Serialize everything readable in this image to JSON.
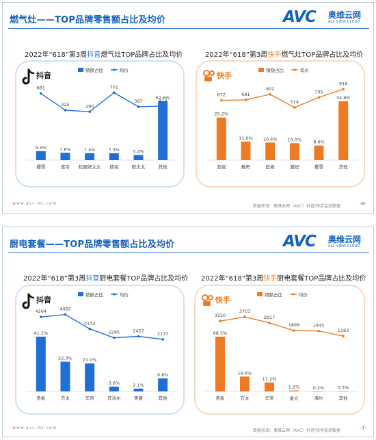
{
  "slides": [
    {
      "title": "燃气灶——TOP品牌零售额占比及均价",
      "logo_cn": "奥维云网",
      "logo_en": "ALL VIEW CLOUD",
      "logo_avc": "AVC",
      "footer_left": "www.avc-mr.com",
      "footer_source": "数据来源：奥维云网（AVC）抖音/快手监测数据",
      "page": "-6-",
      "panels": [
        {
          "title_pre": "2022年“618”第3周",
          "title_hl": "抖音",
          "title_post": "燃气灶TOP品牌占比及均价",
          "platform": "抖音"
        },
        {
          "title_pre": "2022年“618”第3周",
          "title_hl": "快手",
          "title_post": "燃气灶TOP品牌占比及均价",
          "platform": "快手"
        }
      ]
    },
    {
      "title": "厨电套餐——TOP品牌零售额占比及均价",
      "logo_cn": "奥维云网",
      "logo_en": "ALL VIEW CLOUD",
      "logo_avc": "AVC",
      "footer_left": "www.avc-mr.com",
      "footer_source": "数据来源：奥维云网（AVC）抖音/快手监测数据",
      "page": "-7-",
      "panels": [
        {
          "title_pre": "2022年“618”第3周",
          "title_hl": "抖音",
          "title_post": "厨电套餐TOP品牌占比及均价",
          "platform": "抖音"
        },
        {
          "title_pre": "2022年“618”第3周",
          "title_hl": "快手",
          "title_post": "厨电套餐TOP品牌占比及均价",
          "platform": "快手"
        }
      ]
    }
  ],
  "legend": {
    "share": "销额占比",
    "price": "均价"
  },
  "colors": {
    "blue": "#1f6fd6",
    "orange": "#ee7a23",
    "title_blue": "#1560bd"
  },
  "chart_data": [
    {
      "type": "bar",
      "categories": [
        "樱雪",
        "富帝",
        "松厨好太太",
        "德铭",
        "欧太太",
        "其他"
      ],
      "series": [
        {
          "name": "销额占比",
          "values": [
            9.5,
            7.8,
            7.4,
            7.3,
            5.4,
            62.6
          ],
          "labels": [
            "9.5%",
            "7.8%",
            "7.4%",
            "7.3%",
            "5.4%",
            "62.6%"
          ]
        },
        {
          "name": "均价",
          "values": [
            681,
            325,
            290,
            701,
            397,
            413
          ],
          "labels": [
            "681",
            "325",
            "290",
            "701",
            "397",
            "413"
          ]
        }
      ],
      "color": "#1f6fd6"
    },
    {
      "type": "bar",
      "categories": [
        "亚锐",
        "靓奇",
        "匠者",
        "厨妃",
        "樱雪",
        "其他"
      ],
      "series": [
        {
          "name": "销额占比",
          "values": [
            25.2,
            11.0,
            10.4,
            10.0,
            8.6,
            34.8
          ],
          "labels": [
            "25.2%",
            "11.0%",
            "10.4%",
            "10.0%",
            "8.6%",
            "34.8%"
          ]
        },
        {
          "name": "均价",
          "values": [
            672,
            681,
            802,
            514,
            735,
            916
          ],
          "labels": [
            "672",
            "681",
            "802",
            "514",
            "735",
            "916"
          ]
        }
      ],
      "color": "#ee7a23"
    },
    {
      "type": "bar",
      "categories": [
        "老板",
        "方太",
        "华帝",
        "苏泊尔",
        "美菱",
        "其他"
      ],
      "series": [
        {
          "name": "销额占比",
          "values": [
            41.1,
            22.3,
            21.0,
            3.6,
            2.1,
            9.8
          ],
          "labels": [
            "41.1%",
            "22.3%",
            "21.0%",
            "3.6%",
            "2.1%",
            "9.8%"
          ]
        },
        {
          "name": "均价",
          "values": [
            4264,
            4492,
            3132,
            2285,
            2422,
            2137
          ],
          "labels": [
            "4264",
            "4492",
            "3132",
            "2285",
            "2422",
            "2137"
          ]
        }
      ],
      "color": "#1f6fd6"
    },
    {
      "type": "bar",
      "categories": [
        "老板",
        "方太",
        "华帝",
        "金立",
        "海尔",
        "其他"
      ],
      "series": [
        {
          "name": "销额占比",
          "values": [
            68.5,
            18.6,
            11.2,
            1.2,
            0.2,
            0.3
          ],
          "labels": [
            "68.5%",
            "18.6%",
            "11.2%",
            "1.2%",
            "0.2%",
            "0.3%"
          ]
        },
        {
          "name": "均价",
          "values": [
            3150,
            3703,
            2917,
            1899,
            1845,
            1183
          ],
          "labels": [
            "3150",
            "3703",
            "2917",
            "1899",
            "1845",
            "1183"
          ]
        }
      ],
      "color": "#ee7a23"
    }
  ]
}
